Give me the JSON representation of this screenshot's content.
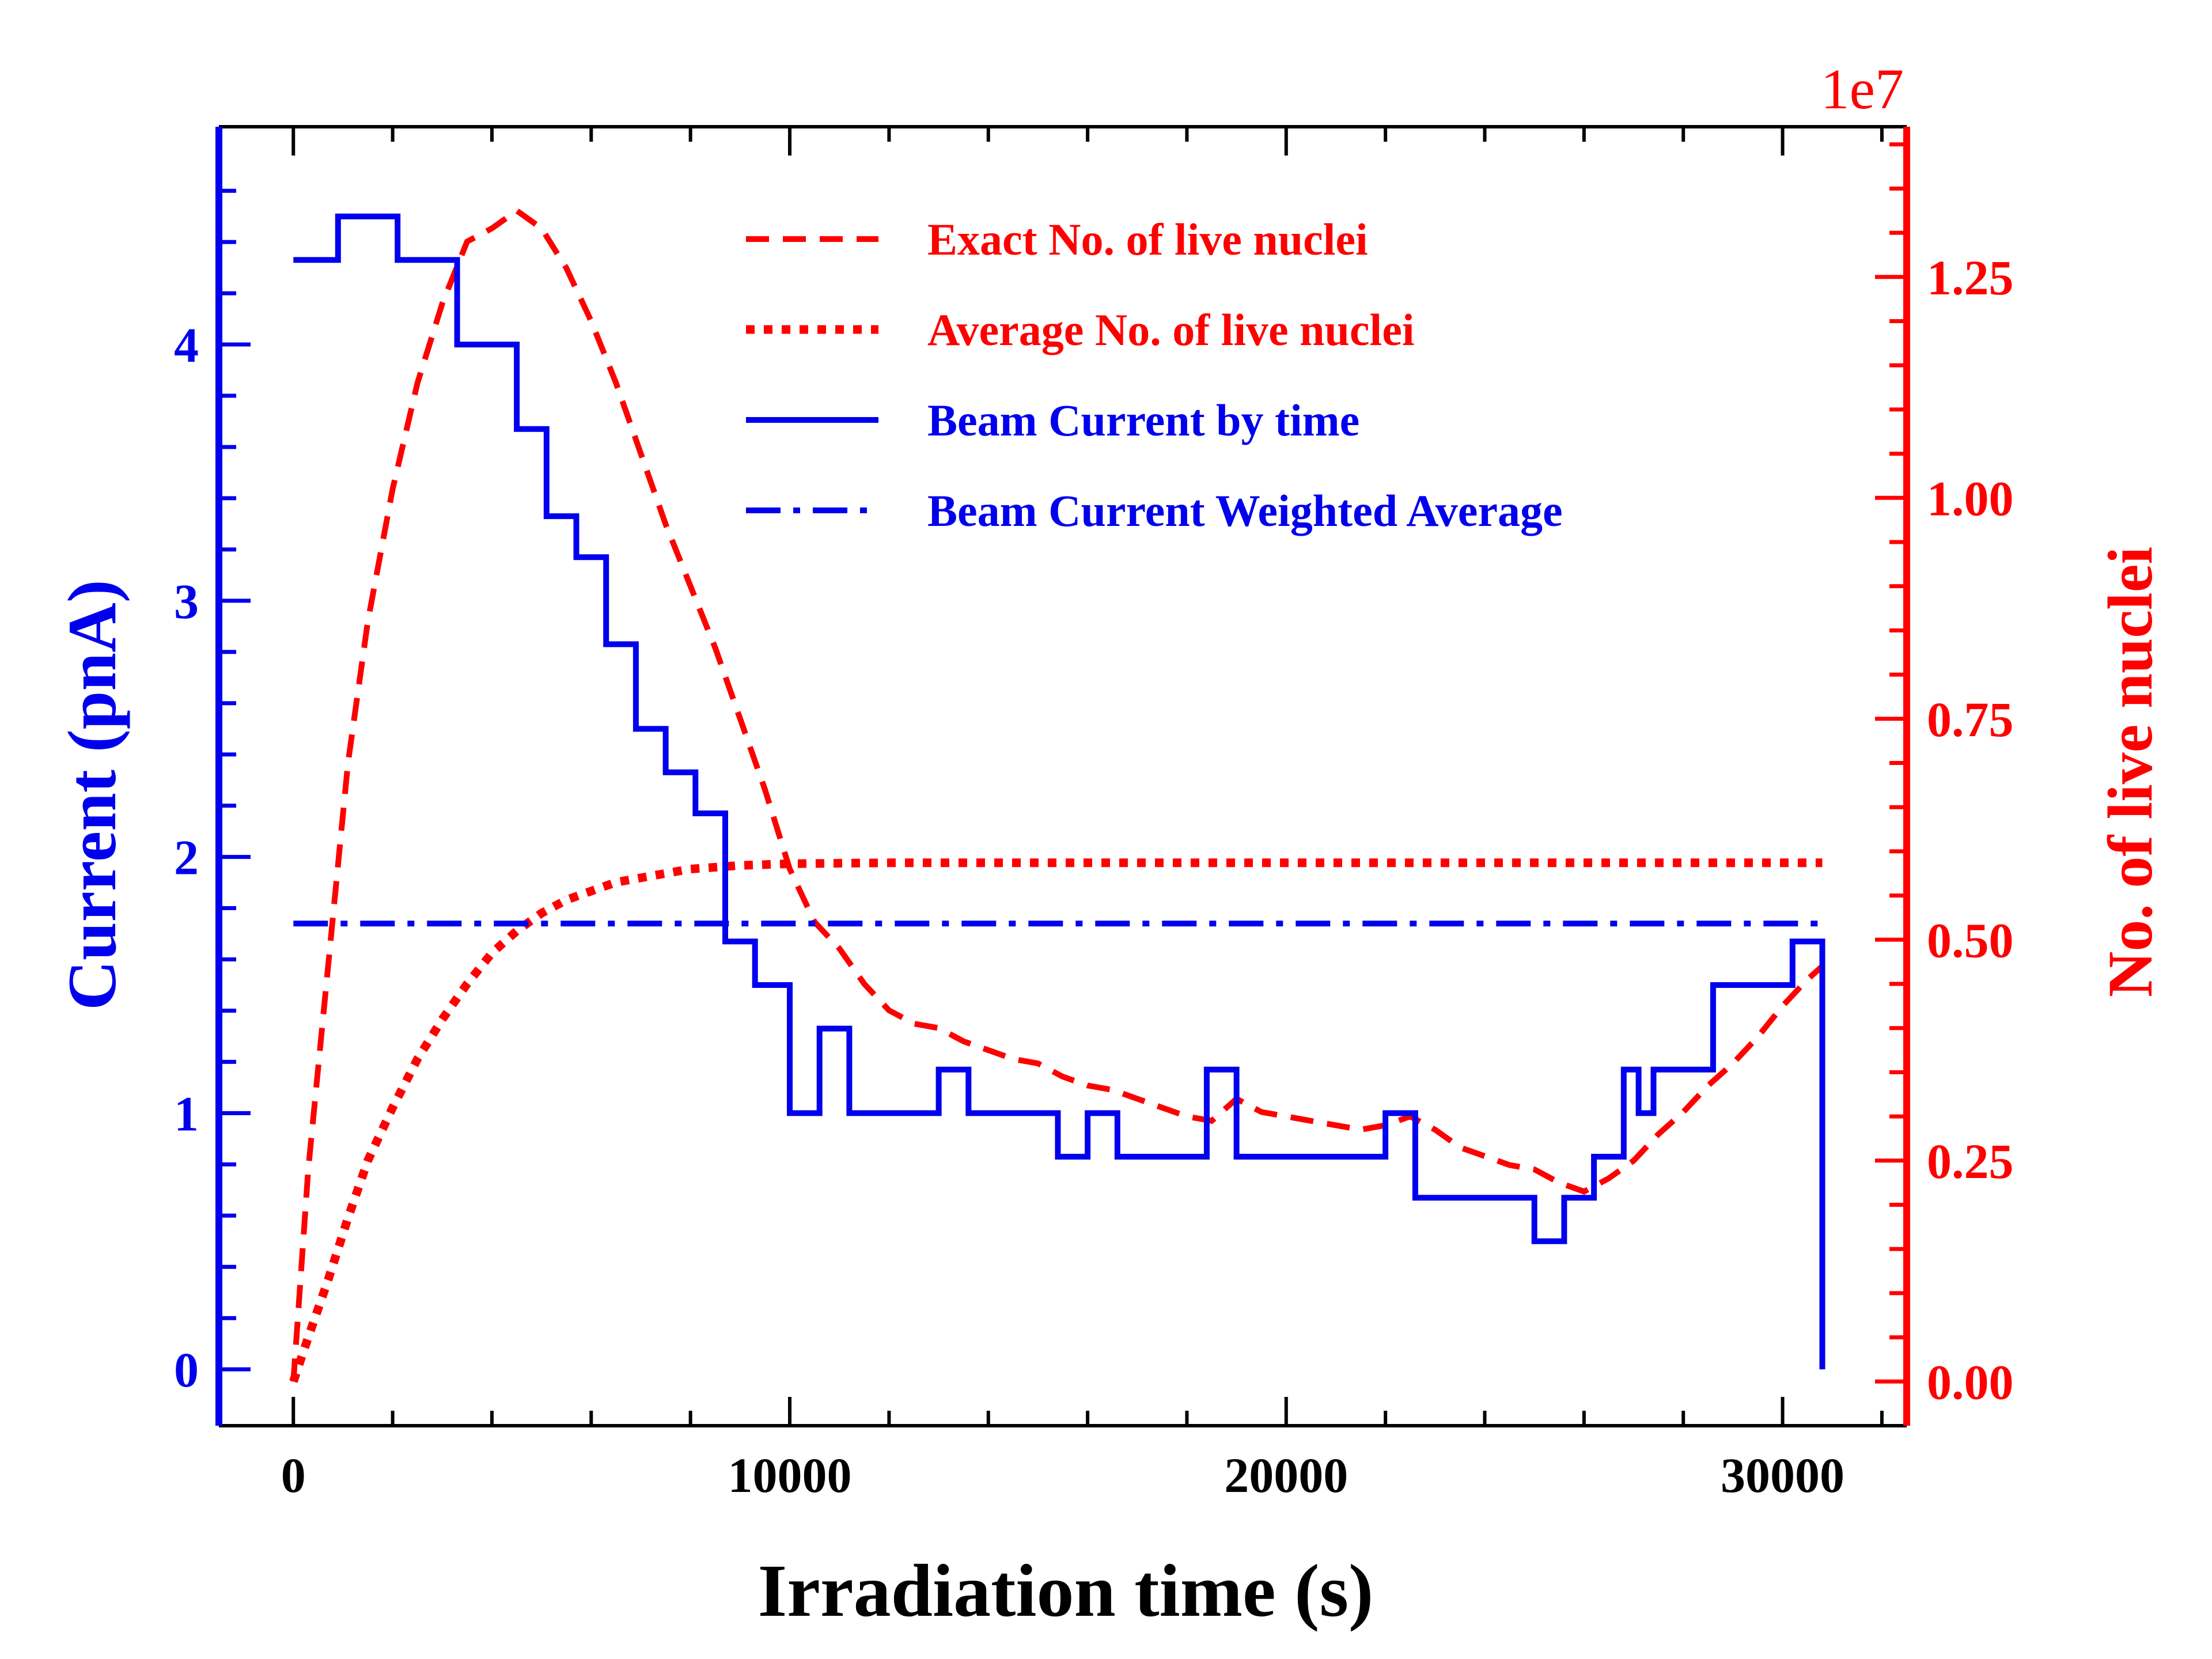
{
  "chart_data": {
    "type": "line",
    "xlabel": "Irradiation time (s)",
    "ylabel_left": "Current (pnA)",
    "ylabel_right": "No. of live nuclei",
    "right_axis_offset_label": "1e7",
    "xlim": [
      -1500,
      32500
    ],
    "ylim_left": [
      -0.22,
      4.85
    ],
    "ylim_right": [
      -500000.0,
      14200000.0
    ],
    "x_ticks": [
      0,
      10000,
      20000,
      30000
    ],
    "x_tick_labels": [
      "0",
      "10000",
      "20000",
      "30000"
    ],
    "y_left_ticks": [
      0,
      1,
      2,
      3,
      4
    ],
    "y_left_tick_labels": [
      "0",
      "1",
      "2",
      "3",
      "4"
    ],
    "y_right_ticks": [
      0,
      2500000,
      5000000,
      7500000,
      10000000,
      12500000
    ],
    "y_right_tick_labels": [
      "0.00",
      "0.25",
      "0.50",
      "0.75",
      "1.00",
      "1.25"
    ],
    "legend_position": "upper-right",
    "colors": {
      "left_axis": "#0000ee",
      "right_axis": "#ff0000",
      "x_axis": "#000000"
    },
    "series": [
      {
        "name": "Exact No. of live nuclei",
        "axis": "right",
        "style": "dashed",
        "color": "#ff0000",
        "x": [
          0,
          300,
          700,
          1100,
          1500,
          2000,
          2500,
          3000,
          3500,
          4000,
          4500,
          5000,
          5500,
          6000,
          6500,
          7000,
          7500,
          8000,
          8500,
          9000,
          9500,
          10000,
          10500,
          11000,
          11500,
          12000,
          12500,
          13000,
          13500,
          14000,
          14500,
          15000,
          15500,
          16000,
          16500,
          17000,
          17500,
          18000,
          18500,
          19000,
          19500,
          20000,
          20500,
          21000,
          21500,
          22000,
          22500,
          23000,
          23500,
          24000,
          24500,
          25000,
          25500,
          26000,
          26500,
          27000,
          27500,
          28000,
          28500,
          29000,
          29500,
          30000,
          30500,
          30800
        ],
        "y": [
          0,
          2400000,
          4700000,
          7000000,
          8600000,
          10100000,
          11300000,
          12200000,
          12900000,
          13050000,
          13250000,
          13050000,
          12600000,
          12000000,
          11300000,
          10500000,
          9700000,
          9000000,
          8300000,
          7500000,
          6700000,
          5800000,
          5200000,
          4900000,
          4500000,
          4200000,
          4050000,
          4000000,
          3850000,
          3750000,
          3650000,
          3600000,
          3450000,
          3350000,
          3300000,
          3200000,
          3100000,
          3000000,
          2950000,
          3200000,
          3050000,
          3000000,
          2950000,
          2900000,
          2850000,
          2900000,
          3000000,
          2850000,
          2650000,
          2550000,
          2450000,
          2400000,
          2250000,
          2150000,
          2300000,
          2500000,
          2800000,
          3050000,
          3350000,
          3600000,
          3900000,
          4250000,
          4550000,
          4700000
        ]
      },
      {
        "name": "Average No. of live nuclei",
        "axis": "right",
        "style": "dotted",
        "color": "#ff0000",
        "x": [
          0,
          300,
          700,
          1100,
          1500,
          2000,
          2500,
          3000,
          3500,
          4000,
          4500,
          5000,
          5500,
          6000,
          6500,
          7000,
          7500,
          8000,
          8500,
          9000,
          10000,
          12000,
          15000,
          20000,
          25000,
          30000,
          30800
        ],
        "y": [
          0,
          500000,
          1150000,
          1850000,
          2500000,
          3100000,
          3650000,
          4100000,
          4500000,
          4850000,
          5100000,
          5300000,
          5450000,
          5550000,
          5650000,
          5700000,
          5750000,
          5800000,
          5820000,
          5840000,
          5860000,
          5870000,
          5870000,
          5870000,
          5870000,
          5870000,
          5870000
        ]
      },
      {
        "name": "Beam Current by time",
        "axis": "left",
        "style": "solid-step",
        "color": "#0000ee",
        "x": [
          0,
          900,
          900,
          2100,
          2100,
          3300,
          3300,
          4500,
          4500,
          5100,
          5100,
          5700,
          5700,
          6300,
          6300,
          6900,
          6900,
          7500,
          7500,
          8100,
          8100,
          8700,
          8700,
          9300,
          9300,
          10000,
          10000,
          10600,
          10600,
          11200,
          11200,
          13000,
          13000,
          13600,
          13600,
          15400,
          15400,
          16000,
          16000,
          16600,
          16600,
          18400,
          18400,
          19000,
          19000,
          22000,
          22000,
          22600,
          22600,
          25000,
          25000,
          25600,
          25600,
          26200,
          26200,
          26800,
          26800,
          27100,
          27100,
          27400,
          27400,
          28600,
          28600,
          30200,
          30200,
          30800,
          30800
        ],
        "y": [
          4.33,
          4.33,
          4.5,
          4.5,
          4.33,
          4.33,
          4.0,
          4.0,
          3.67,
          3.67,
          3.33,
          3.33,
          3.17,
          3.17,
          2.83,
          2.83,
          2.5,
          2.5,
          2.33,
          2.33,
          2.17,
          2.17,
          1.67,
          1.67,
          1.5,
          1.5,
          1.0,
          1.0,
          1.33,
          1.33,
          1.0,
          1.0,
          1.17,
          1.17,
          1.0,
          1.0,
          0.83,
          0.83,
          1.0,
          1.0,
          0.83,
          0.83,
          1.17,
          1.17,
          0.83,
          0.83,
          1.0,
          1.0,
          0.67,
          0.67,
          0.5,
          0.5,
          0.67,
          0.67,
          0.83,
          0.83,
          1.17,
          1.17,
          1.0,
          1.0,
          1.17,
          1.17,
          1.5,
          1.5,
          1.67,
          1.67,
          0
        ]
      },
      {
        "name": "Beam Current Weighted Average",
        "axis": "left",
        "style": "dashdot",
        "color": "#0000ee",
        "x": [
          0,
          30800
        ],
        "y": [
          1.74,
          1.74
        ]
      }
    ]
  }
}
